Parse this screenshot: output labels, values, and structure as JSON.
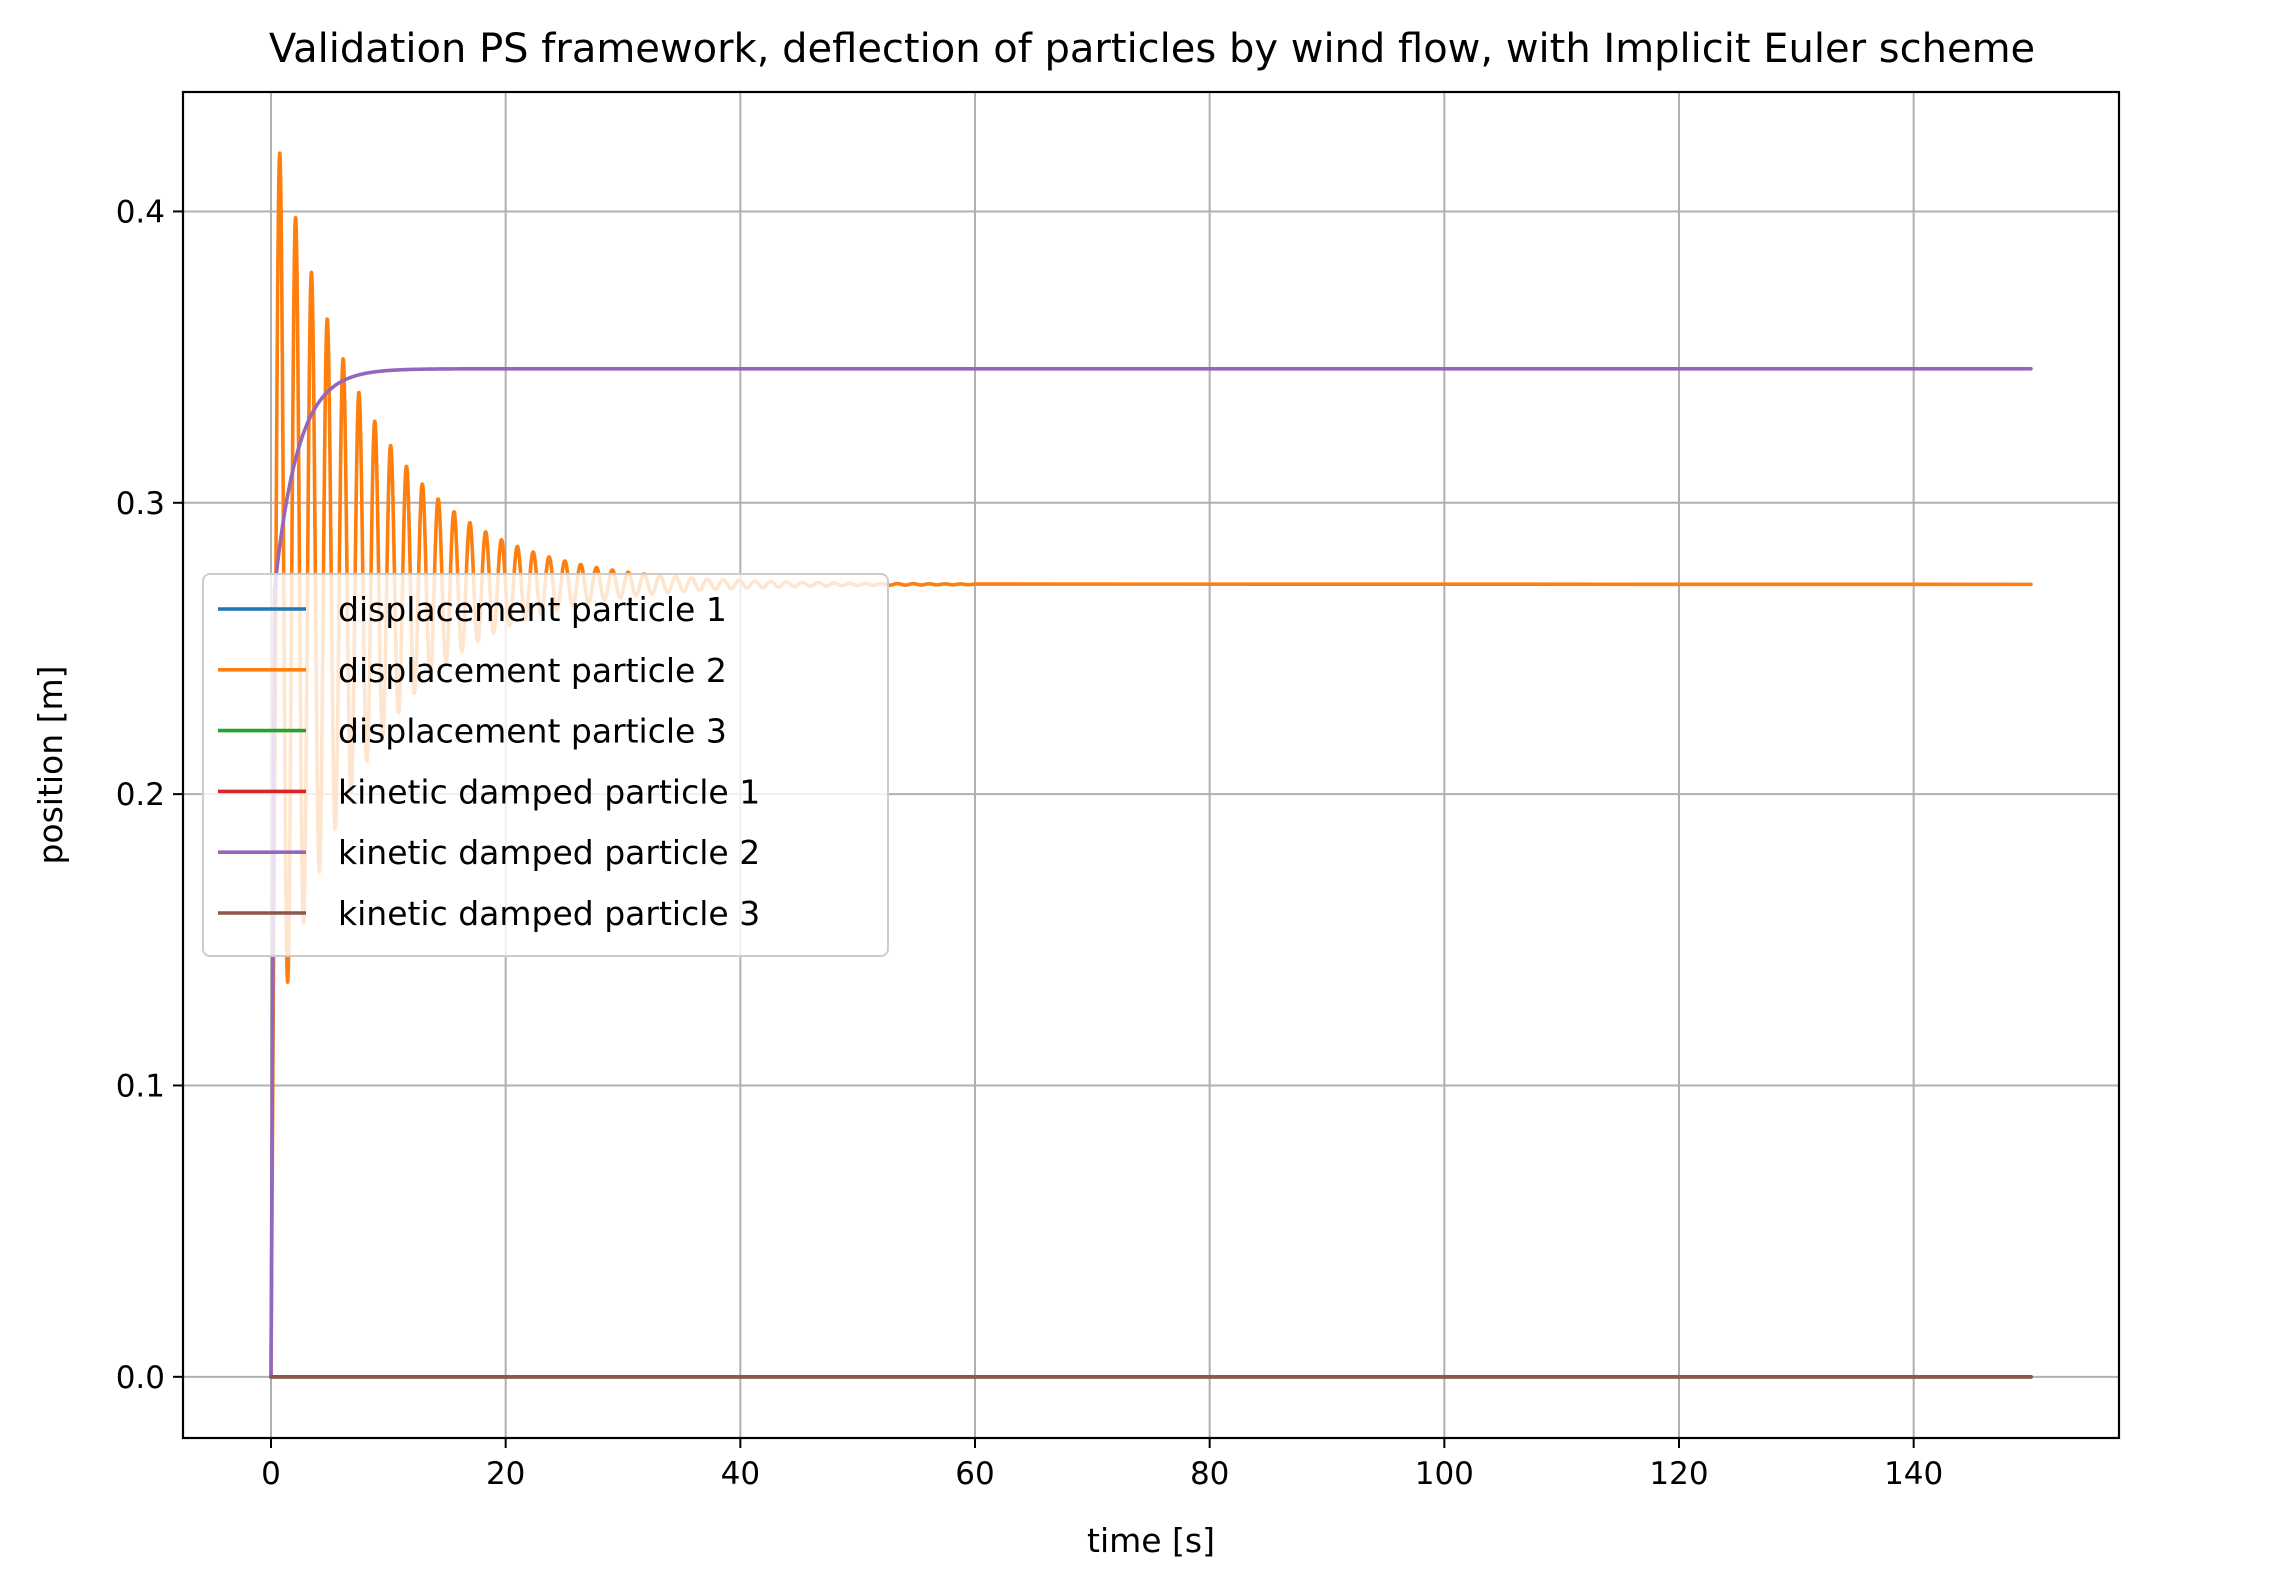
{
  "chart_data": {
    "type": "line",
    "title": "Validation PS framework, deflection of particles by wind flow, with Implicit Euler scheme",
    "xlabel": "time [s]",
    "ylabel": "position [m]",
    "xlim": [
      -7.5,
      157.5
    ],
    "ylim": [
      -0.021,
      0.441
    ],
    "xticks": [
      0,
      20,
      40,
      60,
      80,
      100,
      120,
      140
    ],
    "xtick_labels": [
      "0",
      "20",
      "40",
      "60",
      "80",
      "100",
      "120",
      "140"
    ],
    "yticks": [
      0.0,
      0.1,
      0.2,
      0.3,
      0.4
    ],
    "ytick_labels": [
      "0.0",
      "0.1",
      "0.2",
      "0.3",
      "0.4"
    ],
    "grid": true,
    "legend_position": "center-left",
    "series": [
      {
        "name": "displacement particle 1",
        "color": "#1f77b4",
        "model": "constant",
        "value": 0.0,
        "t_end": 150
      },
      {
        "name": "displacement particle 2",
        "color": "#ff7f0e",
        "model": "damped_oscillation",
        "equilibrium": 0.272,
        "initial_peak": 0.42,
        "first_peak_t": 0.75,
        "period": 1.35,
        "decay_rate": 0.12,
        "t_end": 150
      },
      {
        "name": "displacement particle 3",
        "color": "#2ca02c",
        "model": "constant",
        "value": 0.0,
        "t_end": 150
      },
      {
        "name": "kinetic damped particle 1",
        "color": "#d62728",
        "model": "constant",
        "value": 0.0,
        "t_end": 150
      },
      {
        "name": "kinetic damped particle 2",
        "color": "#9467bd",
        "model": "exponential_rise",
        "final": 0.346,
        "jump_to": 0.27,
        "jump_t": 0.3,
        "time_constant": 2.0,
        "t_end": 150
      },
      {
        "name": "kinetic damped particle 3",
        "color": "#8c564b",
        "model": "constant",
        "value": 0.0,
        "t_end": 150
      }
    ]
  }
}
